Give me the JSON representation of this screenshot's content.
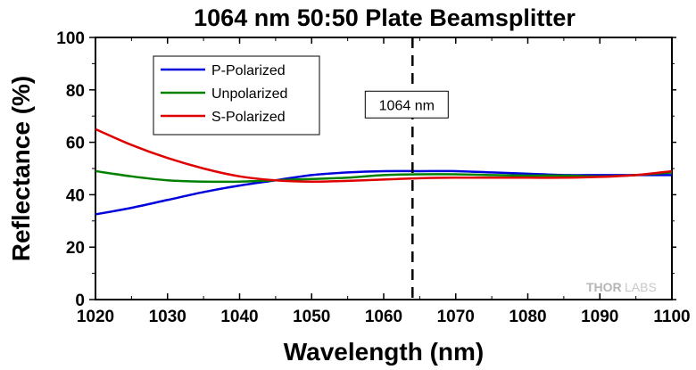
{
  "chart_data": {
    "type": "line",
    "title": "1064 nm 50:50 Plate Beamsplitter",
    "xlabel": "Wavelength (nm)",
    "ylabel": "Reflectance (%)",
    "xlim": [
      1020,
      1100
    ],
    "ylim": [
      0,
      100
    ],
    "x_ticks": [
      1020,
      1030,
      1040,
      1050,
      1060,
      1070,
      1080,
      1090,
      1100
    ],
    "y_ticks": [
      0,
      20,
      40,
      60,
      80,
      100
    ],
    "grid": false,
    "legend_position": "top-left",
    "series": [
      {
        "name": "P-Polarized",
        "color": "#0000dd",
        "x": [
          1020,
          1025,
          1030,
          1035,
          1040,
          1045,
          1050,
          1055,
          1060,
          1065,
          1070,
          1075,
          1080,
          1085,
          1090,
          1095,
          1100
        ],
        "y": [
          32.5,
          35.0,
          38.0,
          41.0,
          43.5,
          45.5,
          47.5,
          48.5,
          49.0,
          49.0,
          49.0,
          48.5,
          48.0,
          47.5,
          47.5,
          47.5,
          47.5
        ]
      },
      {
        "name": "Unpolarized",
        "color": "#008000",
        "x": [
          1020,
          1025,
          1030,
          1035,
          1040,
          1045,
          1050,
          1055,
          1060,
          1065,
          1070,
          1075,
          1080,
          1085,
          1090,
          1095,
          1100
        ],
        "y": [
          49.0,
          47.0,
          45.5,
          45.0,
          45.0,
          45.5,
          46.0,
          46.5,
          47.5,
          47.8,
          47.8,
          47.5,
          47.3,
          47.3,
          47.0,
          47.5,
          48.5
        ]
      },
      {
        "name": "S-Polarized",
        "color": "#e00000",
        "x": [
          1020,
          1025,
          1030,
          1035,
          1040,
          1045,
          1050,
          1055,
          1060,
          1065,
          1070,
          1075,
          1080,
          1085,
          1090,
          1095,
          1100
        ],
        "y": [
          65.0,
          59.0,
          54.0,
          50.0,
          47.0,
          45.5,
          45.0,
          45.3,
          45.8,
          46.3,
          46.5,
          46.5,
          46.5,
          46.5,
          46.8,
          47.5,
          49.0
        ]
      }
    ],
    "annotations": [
      {
        "text": "1064 nm",
        "x": 1064,
        "style": "dashed-vertical-line"
      }
    ]
  },
  "watermark": {
    "part1": "THOR",
    "part2": "LABS"
  }
}
